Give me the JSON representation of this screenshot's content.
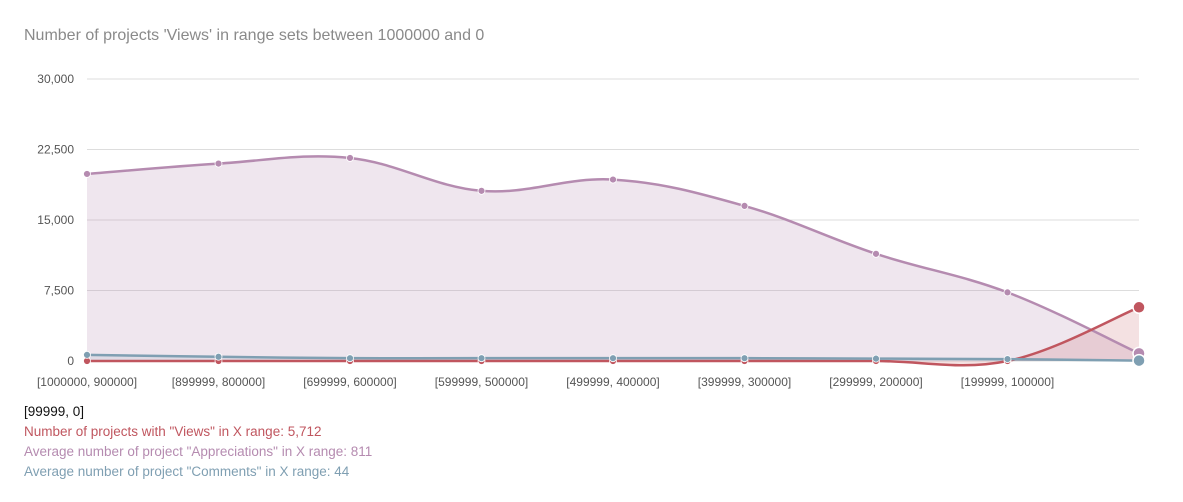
{
  "chart_data": {
    "type": "area",
    "title": "Number of projects 'Views' in range sets between 1000000 and 0",
    "categories": [
      "[1000000, 900000]",
      "[899999, 800000]",
      "[699999, 600000]",
      "[599999, 500000]",
      "[499999, 400000]",
      "[399999, 300000]",
      "[299999, 200000]",
      "[199999, 100000]",
      "[99999, 0]"
    ],
    "y_ticks": [
      "30,000",
      "22,500",
      "15,000",
      "7,500",
      "0"
    ],
    "ylim": [
      0,
      30000
    ],
    "grid": true,
    "series": [
      {
        "name": "Number of projects with \"Views\" in X range",
        "color": "#c0565f",
        "values": [
          0,
          0,
          0,
          0,
          0,
          0,
          0,
          0,
          5712
        ]
      },
      {
        "name": "Average number of project \"Appreciations\" in X range",
        "color": "#b58bb0",
        "values": [
          19900,
          21000,
          21600,
          18100,
          19300,
          16500,
          11400,
          7300,
          811
        ]
      },
      {
        "name": "Average number of project \"Comments\" in X range",
        "color": "#7f9fb2",
        "values": [
          650,
          450,
          300,
          300,
          300,
          300,
          250,
          200,
          44
        ]
      }
    ]
  },
  "tooltip": {
    "header": "[99999, 0]",
    "lines": [
      {
        "text": "Number of projects with \"Views\" in X range: 5,712",
        "color": "#c0565f"
      },
      {
        "text": "Average number of project \"Appreciations\" in X range: 811",
        "color": "#b58bb0"
      },
      {
        "text": "Average number of project \"Comments\" in X range: 44",
        "color": "#7f9fb2"
      }
    ]
  }
}
